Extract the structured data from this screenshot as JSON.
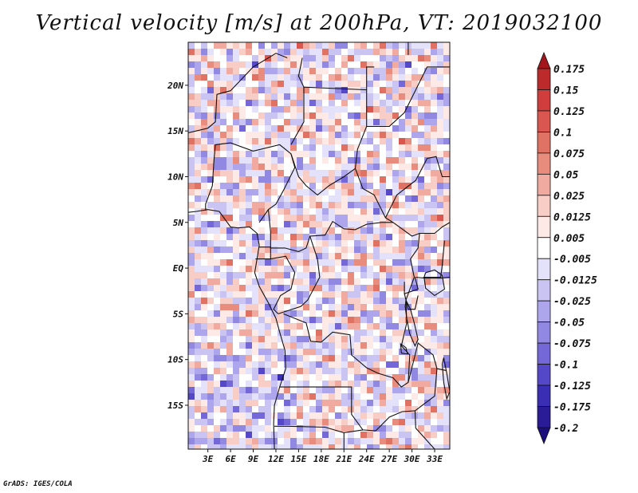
{
  "title": "Vertical velocity [m/s] at 200hPa, VT: 2019032100",
  "credit": "GrADS: IGES/COLA",
  "map": {
    "lat_labels": [
      {
        "lat": 20,
        "label": "20N"
      },
      {
        "lat": 15,
        "label": "15N"
      },
      {
        "lat": 10,
        "label": "10N"
      },
      {
        "lat": 5,
        "label": "5N"
      },
      {
        "lat": 0,
        "label": "EQ"
      },
      {
        "lat": -5,
        "label": "5S"
      },
      {
        "lat": -10,
        "label": "10S"
      },
      {
        "lat": -15,
        "label": "15S"
      }
    ],
    "lon_labels": [
      {
        "lon": 3,
        "label": "3E"
      },
      {
        "lon": 6,
        "label": "6E"
      },
      {
        "lon": 9,
        "label": "9E"
      },
      {
        "lon": 12,
        "label": "12E"
      },
      {
        "lon": 15,
        "label": "15E"
      },
      {
        "lon": 18,
        "label": "18E"
      },
      {
        "lon": 21,
        "label": "21E"
      },
      {
        "lon": 24,
        "label": "24E"
      },
      {
        "lon": 27,
        "label": "27E"
      },
      {
        "lon": 30,
        "label": "30E"
      },
      {
        "lon": 33,
        "label": "33E"
      }
    ],
    "lon_range": [
      0.4,
      35.0
    ],
    "lat_range": [
      -19.8,
      24.7
    ]
  },
  "colorbar": {
    "labels": [
      "0.175",
      "0.15",
      "0.125",
      "0.1",
      "0.075",
      "0.05",
      "0.025",
      "0.0125",
      "0.005",
      "-0.005",
      "-0.0125",
      "-0.025",
      "-0.05",
      "-0.075",
      "-0.1",
      "-0.125",
      "-0.175",
      "-0.2"
    ],
    "colors": [
      "#a3171c",
      "#bd2a2b",
      "#cf3e3c",
      "#d9574f",
      "#e07263",
      "#e88d7d",
      "#f0aaa0",
      "#f8cdc5",
      "#fde9e6",
      "#ffffff",
      "#e4e2fa",
      "#c9c4f2",
      "#aea6ec",
      "#9188e2",
      "#7468d8",
      "#5548c8",
      "#3a2eb4",
      "#2a1b96",
      "#1c0e7c"
    ]
  }
}
